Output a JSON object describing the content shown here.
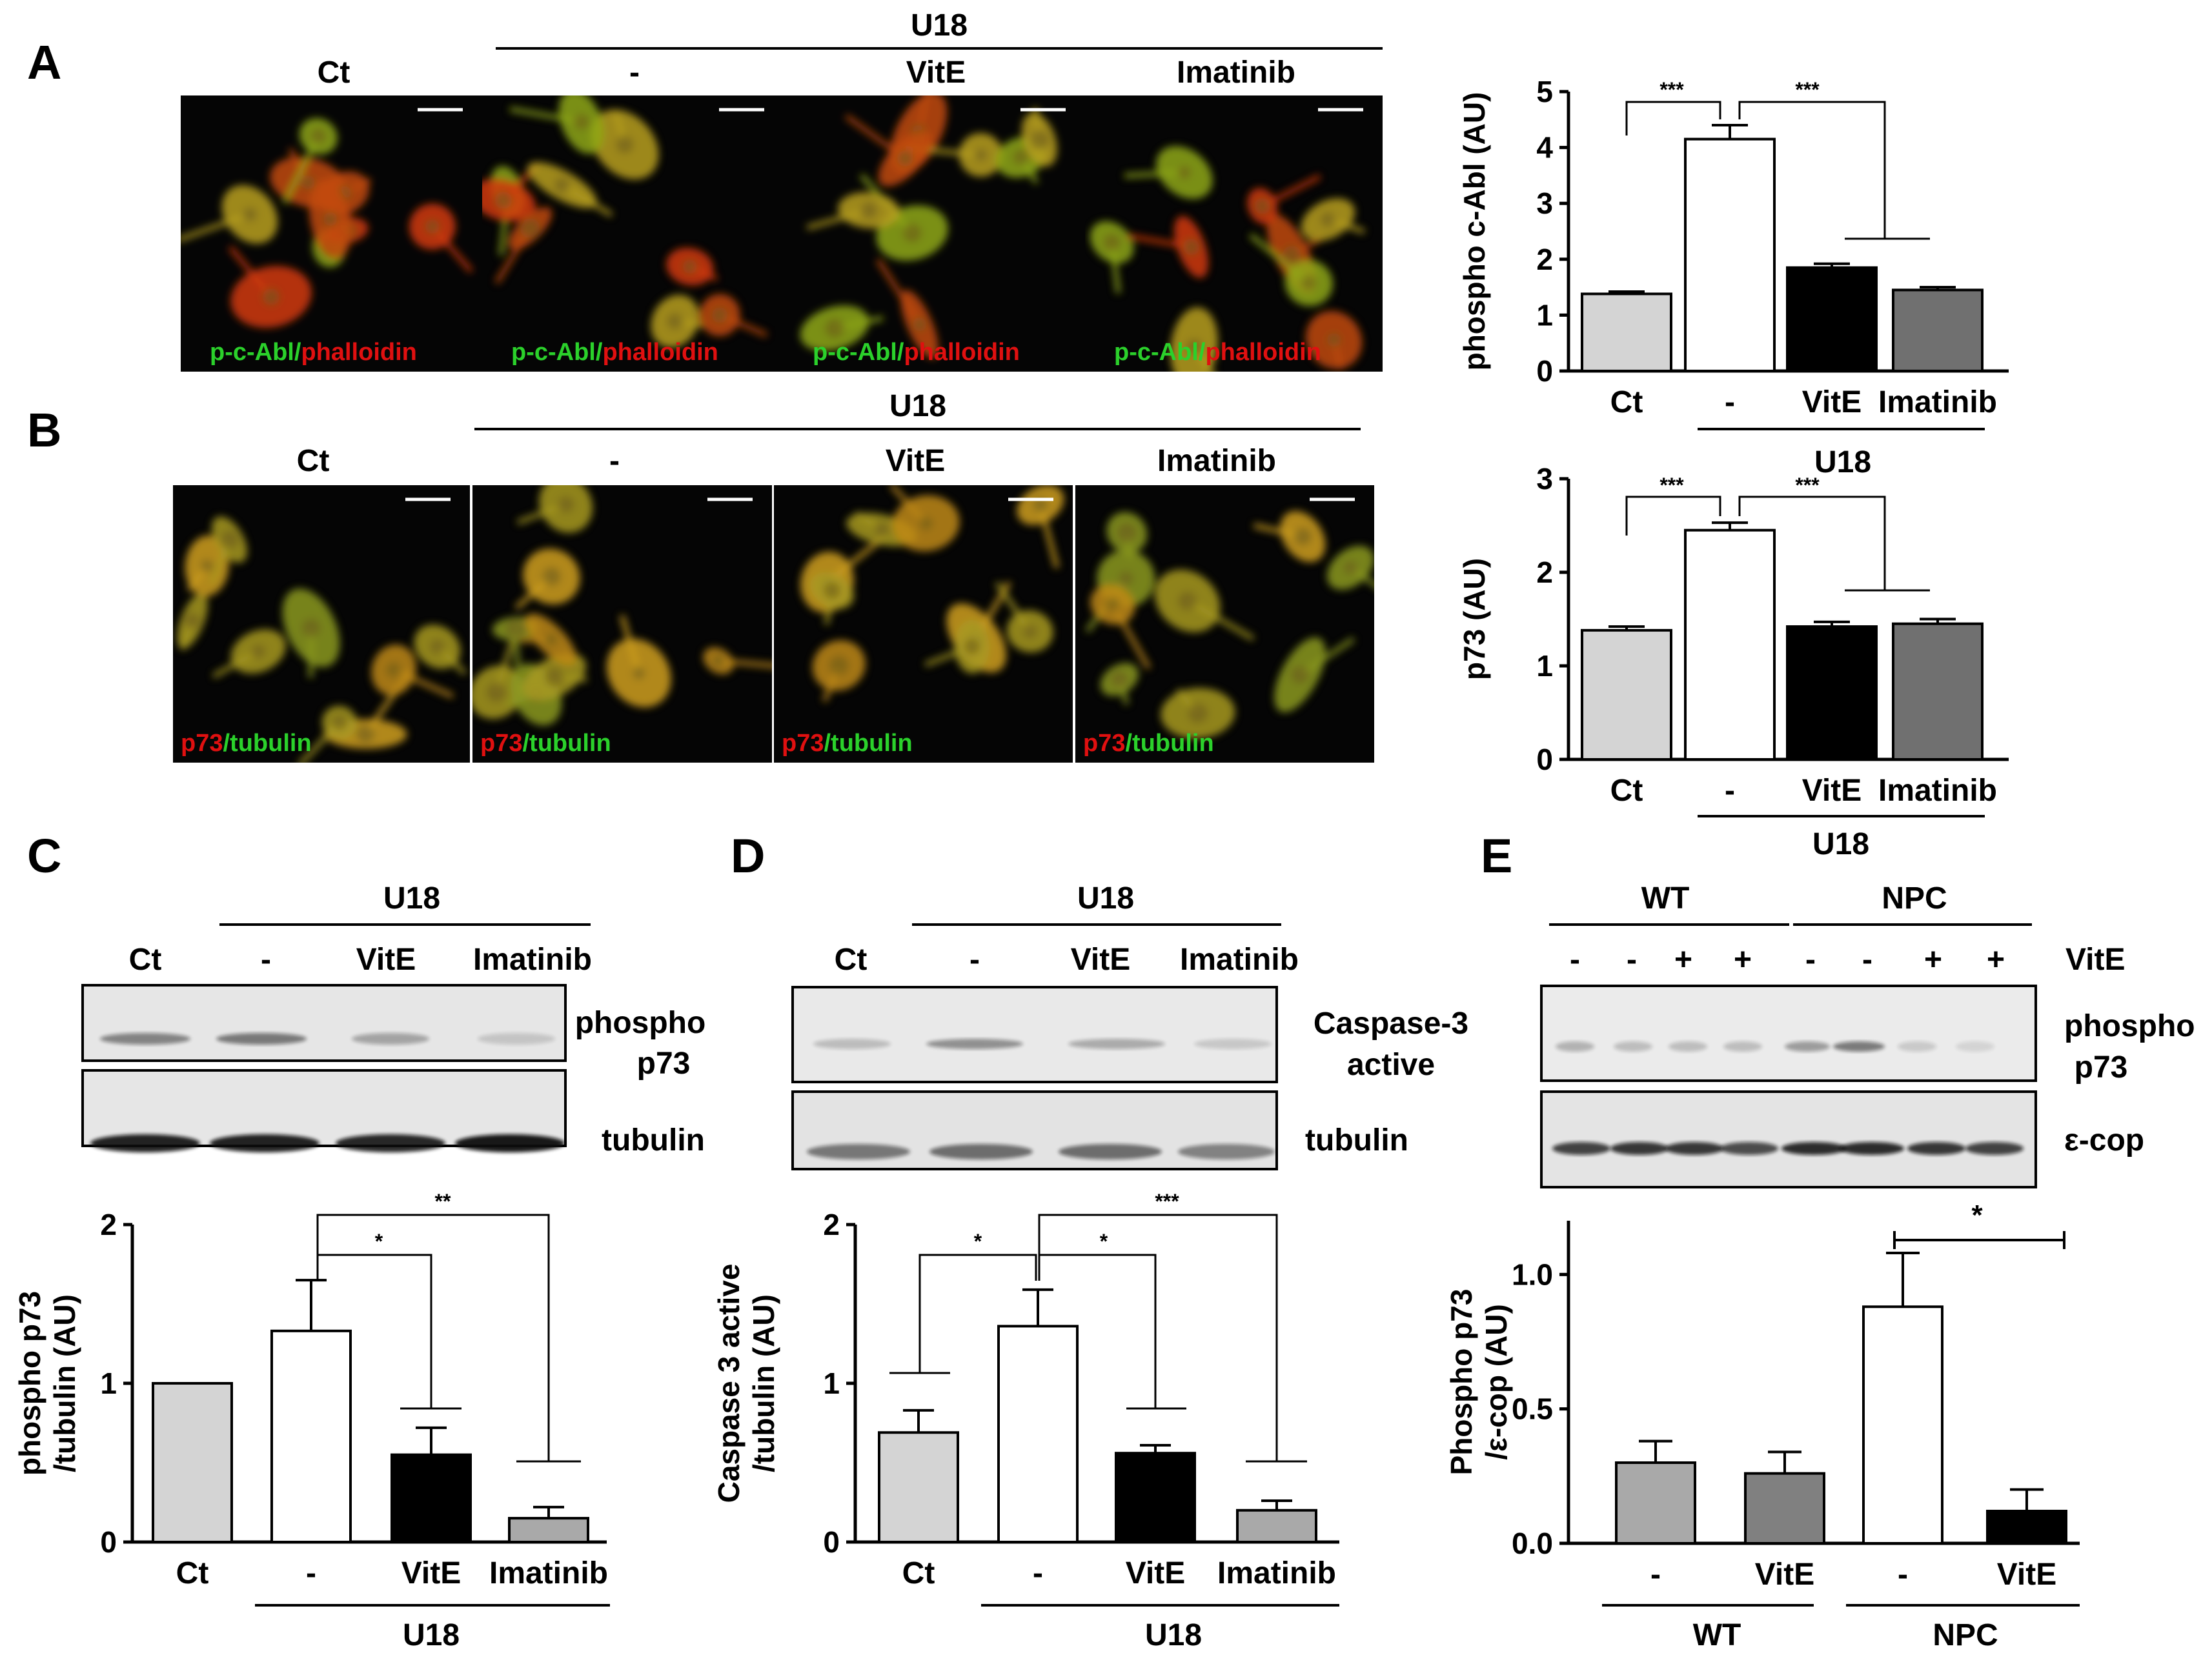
{
  "panel_letters": {
    "a": "A",
    "b": "B",
    "c": "C",
    "d": "D",
    "e": "E"
  },
  "micro_a": {
    "group_label": "U18",
    "column_labels": [
      "Ct",
      "-",
      "VitE",
      "Imatinib"
    ],
    "stain_green": "p-c-Abl/",
    "stain_red": "phalloidin",
    "colors": {
      "green": "#2bd12b",
      "red": "#e01010"
    }
  },
  "micro_b": {
    "group_label": "U18",
    "column_labels": [
      "Ct",
      "-",
      "VitE",
      "Imatinib"
    ],
    "stain_red": "p73",
    "stain_green": "/tubulin",
    "colors": {
      "green": "#2bd12b",
      "red": "#e01010"
    }
  },
  "blot_c": {
    "group_label": "U18",
    "lane_labels": [
      "Ct",
      "-",
      "VitE",
      "Imatinib"
    ],
    "band_labels": [
      "phospho",
      "p73",
      "tubulin"
    ]
  },
  "blot_d": {
    "group_label": "U18",
    "lane_labels": [
      "Ct",
      "-",
      "VitE",
      "Imatinib"
    ],
    "band_labels": [
      "Caspase-3",
      "active",
      "tubulin"
    ]
  },
  "blot_e": {
    "group_labels": [
      "WT",
      "NPC"
    ],
    "lane_signs": [
      "-",
      "-",
      "+",
      "+",
      "-",
      "-",
      "+",
      "+"
    ],
    "treatment_label": "VitE",
    "band_labels": [
      "phospho",
      "p73",
      "ε-cop"
    ]
  },
  "chart_data": [
    {
      "id": "A",
      "type": "bar",
      "categories": [
        "Ct",
        "-",
        "VitE",
        "Imatinib"
      ],
      "values": [
        1.38,
        4.15,
        1.85,
        1.45
      ],
      "errors": [
        0.04,
        0.25,
        0.07,
        0.05
      ],
      "ylabel": "phospho c-Abl (AU)",
      "ylim": [
        0,
        5
      ],
      "yticks": [
        0,
        1,
        2,
        3,
        4,
        5
      ],
      "ytick_labels": [
        "0",
        "1",
        "2",
        "3",
        "4",
        "5"
      ],
      "group_label": "U18",
      "significance": [
        "***",
        "***"
      ],
      "bar_colors": [
        "#d4d4d4",
        "#ffffff",
        "#000000",
        "#707070"
      ]
    },
    {
      "id": "B",
      "type": "bar",
      "categories": [
        "Ct",
        "-",
        "VitE",
        "Imatinib"
      ],
      "values": [
        1.38,
        2.45,
        1.42,
        1.45
      ],
      "errors": [
        0.04,
        0.08,
        0.05,
        0.05
      ],
      "ylabel": "p73  (AU)",
      "ylim": [
        0,
        3
      ],
      "yticks": [
        0,
        1,
        2,
        3
      ],
      "ytick_labels": [
        "0",
        "1",
        "2",
        "3"
      ],
      "group_label": "U18",
      "significance": [
        "***",
        "***"
      ],
      "bar_colors": [
        "#d4d4d4",
        "#ffffff",
        "#000000",
        "#707070"
      ]
    },
    {
      "id": "C",
      "type": "bar",
      "categories": [
        "Ct",
        "-",
        "VitE",
        "Imatinib"
      ],
      "values": [
        1.0,
        1.33,
        0.55,
        0.15
      ],
      "errors": [
        0,
        0.32,
        0.17,
        0.07
      ],
      "ylabel": [
        "phospho p73",
        "/tubulin (AU)"
      ],
      "ylim": [
        0,
        2
      ],
      "yticks": [
        0,
        1,
        2
      ],
      "ytick_labels": [
        "0",
        "1",
        "2"
      ],
      "group_label": "U18",
      "significance": [
        "*",
        "**"
      ],
      "bar_colors": [
        "#d4d4d4",
        "#ffffff",
        "#000000",
        "#a9a9a9"
      ]
    },
    {
      "id": "D",
      "type": "bar",
      "categories": [
        "Ct",
        "-",
        "VitE",
        "Imatinib"
      ],
      "values": [
        0.69,
        1.36,
        0.56,
        0.2
      ],
      "errors": [
        0.14,
        0.23,
        0.05,
        0.06
      ],
      "ylabel": [
        "Caspase 3 active",
        "/tubulin (AU)"
      ],
      "ylim": [
        0,
        2
      ],
      "yticks": [
        0,
        1,
        2
      ],
      "ytick_labels": [
        "0",
        "1",
        "2"
      ],
      "group_label": "U18",
      "significance": [
        "*",
        "*",
        "***"
      ],
      "bar_colors": [
        "#d4d4d4",
        "#ffffff",
        "#000000",
        "#a9a9a9"
      ]
    },
    {
      "id": "E",
      "type": "bar",
      "categories": [
        "-",
        "VitE",
        "-",
        "VitE"
      ],
      "groups": [
        "WT",
        "NPC"
      ],
      "values": [
        0.3,
        0.26,
        0.88,
        0.12
      ],
      "errors": [
        0.08,
        0.08,
        0.2,
        0.08
      ],
      "ylabel": [
        "Phospho p73",
        "/ε-cop (AU)"
      ],
      "ylim": [
        0,
        1.2
      ],
      "yticks": [
        0,
        0.5,
        1.0
      ],
      "ytick_labels": [
        "0.0",
        "0.5",
        "1.0"
      ],
      "significance": [
        "*"
      ],
      "bar_colors": [
        "#a9a9a9",
        "#808080",
        "#ffffff",
        "#000000"
      ]
    }
  ]
}
